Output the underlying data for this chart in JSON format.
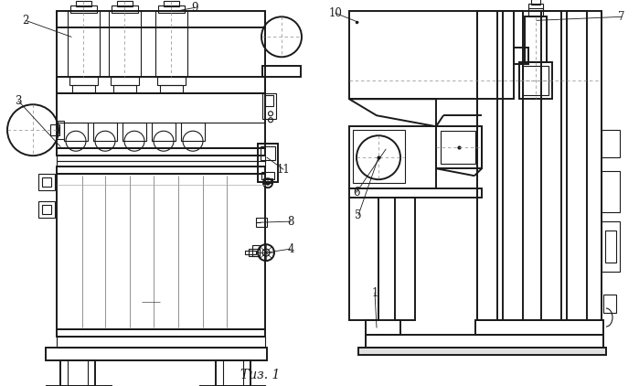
{
  "bg": "#ffffff",
  "lc": "#1a1a1a",
  "lw": 0.8,
  "lw2": 1.4,
  "caption": "Τиз. 1"
}
